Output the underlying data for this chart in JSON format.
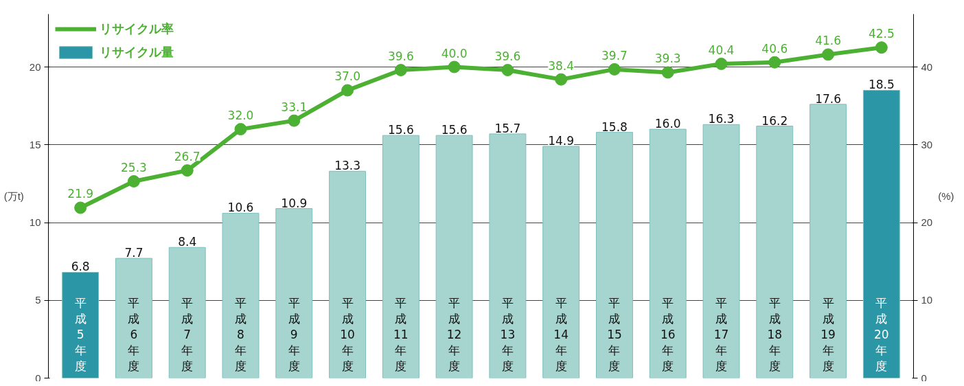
{
  "chart_data": {
    "type": "bar",
    "ylabel": "(万t)",
    "y2label": "(%)",
    "categories": [
      "平成5年度",
      "平成6年度",
      "平成7年度",
      "平成8年度",
      "平成9年度",
      "平成10年度",
      "平成11年度",
      "平成12年度",
      "平成13年度",
      "平成14年度",
      "平成15年度",
      "平成16年度",
      "平成17年度",
      "平成18年度",
      "平成19年度",
      "平成20年度"
    ],
    "series": [
      {
        "name": "リサイクル量",
        "colors": [
          "#2a96a6",
          "#a6d4cf",
          "#a6d4cf",
          "#a6d4cf",
          "#a6d4cf",
          "#a6d4cf",
          "#a6d4cf",
          "#a6d4cf",
          "#a6d4cf",
          "#a6d4cf",
          "#a6d4cf",
          "#a6d4cf",
          "#a6d4cf",
          "#a6d4cf",
          "#a6d4cf",
          "#2a96a6"
        ],
        "color": "#7cbfbd",
        "values": [
          6.8,
          7.7,
          8.4,
          10.6,
          10.9,
          13.3,
          15.6,
          15.6,
          15.7,
          14.9,
          15.8,
          16.0,
          16.3,
          16.2,
          17.6,
          18.5
        ],
        "value_labels": [
          "6.8",
          "7.7",
          "8.4",
          "10.6",
          "10.9",
          "13.3",
          "15.6",
          "15.6",
          "15.7",
          "14.9",
          "15.8",
          "16.0",
          "16.3",
          "16.2",
          "17.6",
          "18.5"
        ]
      },
      {
        "name": "リサイクル率",
        "type": "line",
        "axis": "y2",
        "color": "#4cb032",
        "values": [
          21.9,
          25.3,
          26.7,
          32.0,
          33.1,
          37.0,
          39.6,
          40.0,
          39.6,
          38.4,
          39.7,
          39.3,
          40.4,
          40.6,
          41.6,
          42.5
        ],
        "value_labels": [
          "21.9",
          "25.3",
          "26.7",
          "32.0",
          "33.1",
          "37.0",
          "39.6",
          "40.0",
          "39.6",
          "38.4",
          "39.7",
          "39.3",
          "40.4",
          "40.6",
          "41.6",
          "42.5"
        ]
      }
    ],
    "ylim": [
      0,
      23.4
    ],
    "yticks": [
      0,
      5,
      10,
      15,
      20
    ],
    "y2lim": [
      0,
      46.8
    ],
    "y2ticks": [
      0,
      10,
      20,
      30,
      40
    ],
    "grid": "y",
    "legend": "top left",
    "marker": "circle",
    "line_style": "solid"
  }
}
